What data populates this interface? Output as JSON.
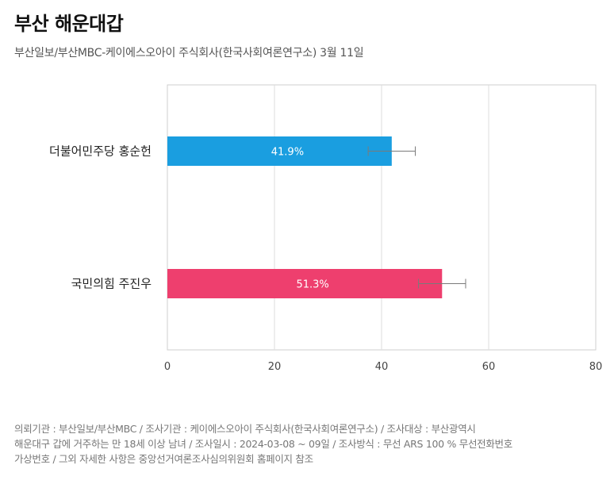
{
  "title": "부산 해운대갑",
  "subtitle": "부산일보/부산MBC-케이에스오아이 주식회사(한국사회여론연구소) 3월 11일",
  "chart_data": {
    "type": "bar",
    "orientation": "horizontal",
    "categories": [
      "더불어민주당 홍순헌",
      "국민의힘 주진우"
    ],
    "values": [
      41.9,
      51.3
    ],
    "value_labels": [
      "41.9%",
      "51.3%"
    ],
    "error_bars": [
      [
        37.5,
        46.3
      ],
      [
        46.9,
        55.7
      ]
    ],
    "colors": [
      "#1a9ee0",
      "#ee3f6e"
    ],
    "xlim": [
      0,
      80
    ],
    "xticks": [
      0,
      20,
      40,
      60,
      80
    ],
    "grid": true,
    "legend": "none"
  },
  "footnote": {
    "line1": "의뢰기관 : 부산일보/부산MBC / 조사기관 : 케이에스오아이 주식회사(한국사회여론연구소) / 조사대상 : 부산광역시",
    "line2": "해운대구 갑에 거주하는 만 18세 이상 남녀 / 조사일시 : 2024-03-08 ~ 09일 / 조사방식 : 무선 ARS 100 % 무선전화번호",
    "line3": "가상번호 / 그외 자세한 사항은 중앙선거여론조사심의위원회 홈페이지 참조"
  }
}
